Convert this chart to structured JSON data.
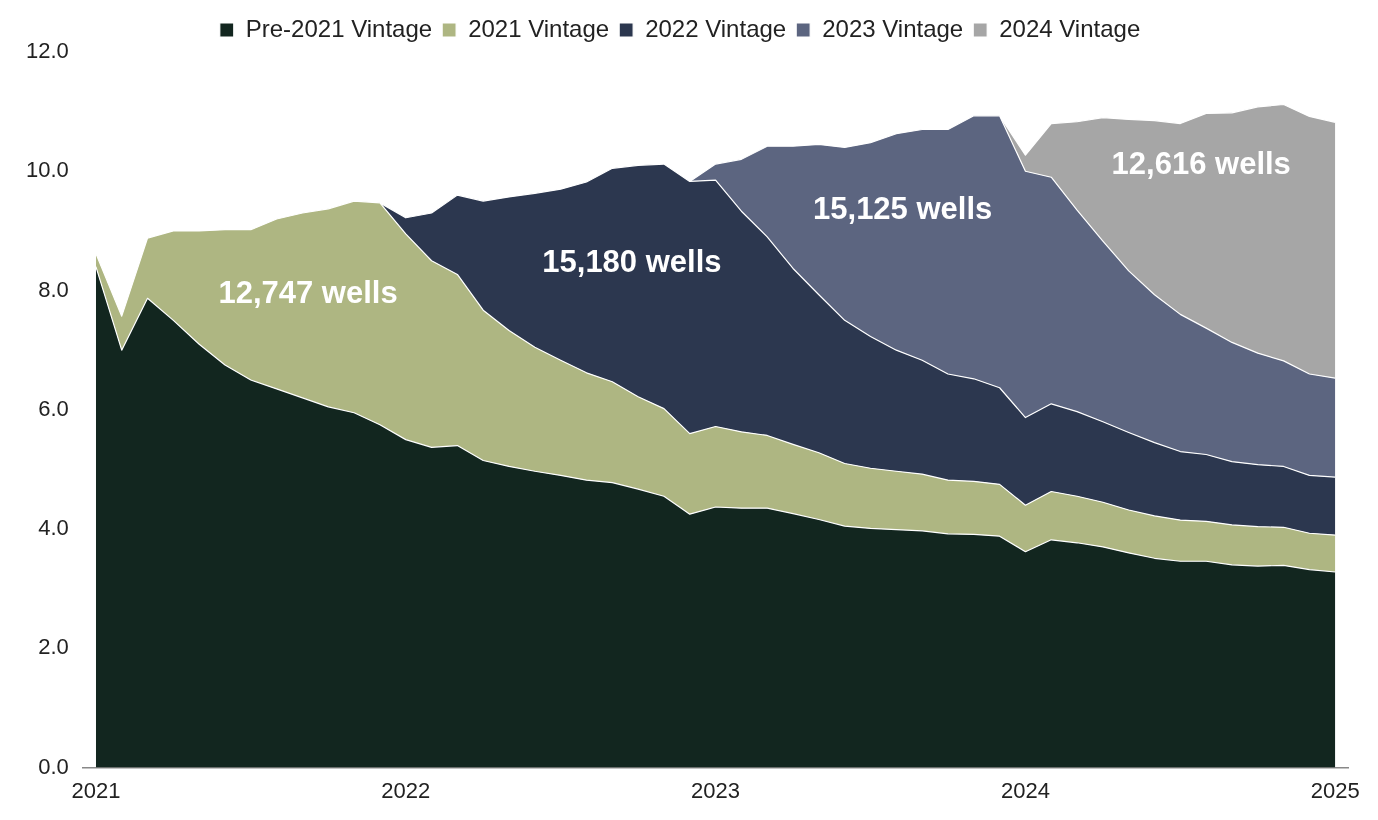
{
  "chart_data": {
    "type": "area",
    "stacked": true,
    "legend": "top",
    "grid": false,
    "x": [
      "2021-01",
      "2021-02",
      "2021-03",
      "2021-04",
      "2021-05",
      "2021-06",
      "2021-07",
      "2021-08",
      "2021-09",
      "2021-10",
      "2021-11",
      "2021-12",
      "2022-01",
      "2022-02",
      "2022-03",
      "2022-04",
      "2022-05",
      "2022-06",
      "2022-07",
      "2022-08",
      "2022-09",
      "2022-10",
      "2022-11",
      "2022-12",
      "2023-01",
      "2023-02",
      "2023-03",
      "2023-04",
      "2023-05",
      "2023-06",
      "2023-07",
      "2023-08",
      "2023-09",
      "2023-10",
      "2023-11",
      "2023-12",
      "2024-01",
      "2024-02",
      "2024-03",
      "2024-04",
      "2024-05",
      "2024-06",
      "2024-07",
      "2024-08",
      "2024-09",
      "2024-10",
      "2024-11",
      "2024-12",
      "2025-01"
    ],
    "xlim": [
      "2020-12-16",
      "2025-01-16"
    ],
    "xticks": [
      "2021",
      "2022",
      "2023",
      "2024",
      "2025"
    ],
    "ylim": [
      0,
      12
    ],
    "yticks": [
      {
        "value": 0,
        "label": "0.0"
      },
      {
        "value": 2,
        "label": "2.0"
      },
      {
        "value": 4,
        "label": "4.0"
      },
      {
        "value": 6,
        "label": "6.0"
      },
      {
        "value": 8,
        "label": "8.0"
      },
      {
        "value": 10,
        "label": "10.0"
      },
      {
        "value": 12,
        "label": "12.0"
      }
    ],
    "series": [
      {
        "name": "Pre-2021 Vintage",
        "color": "#12261f",
        "values": [
          8.4,
          7.0,
          7.87,
          7.5,
          7.1,
          6.75,
          6.5,
          6.35,
          6.2,
          6.05,
          5.95,
          5.75,
          5.5,
          5.37,
          5.4,
          5.15,
          5.05,
          4.97,
          4.9,
          4.82,
          4.78,
          4.67,
          4.55,
          4.25,
          4.37,
          4.35,
          4.35,
          4.26,
          4.16,
          4.05,
          4.01,
          3.99,
          3.97,
          3.92,
          3.91,
          3.88,
          3.62,
          3.82,
          3.77,
          3.7,
          3.6,
          3.51,
          3.46,
          3.46,
          3.4,
          3.38,
          3.39,
          3.32,
          3.28
        ]
      },
      {
        "name": "2021 Vintage",
        "color": "#aeb682",
        "values": [
          0.22,
          0.57,
          1.01,
          1.5,
          1.9,
          2.27,
          2.52,
          2.85,
          3.1,
          3.32,
          3.55,
          3.72,
          3.45,
          3.13,
          2.87,
          2.52,
          2.28,
          2.08,
          1.93,
          1.8,
          1.69,
          1.55,
          1.47,
          1.35,
          1.35,
          1.28,
          1.22,
          1.16,
          1.12,
          1.05,
          1.01,
          0.98,
          0.95,
          0.9,
          0.89,
          0.87,
          0.78,
          0.81,
          0.78,
          0.75,
          0.72,
          0.71,
          0.69,
          0.67,
          0.67,
          0.66,
          0.64,
          0.61,
          0.62
        ]
      },
      {
        "name": "2022 Vintage",
        "color": "#2c374f",
        "values": [
          0,
          0,
          0,
          0,
          0,
          0,
          0,
          0,
          0,
          0,
          0,
          0,
          0.27,
          0.8,
          1.33,
          1.83,
          2.24,
          2.58,
          2.87,
          3.2,
          3.58,
          3.88,
          4.1,
          4.23,
          4.13,
          3.7,
          3.33,
          2.95,
          2.65,
          2.4,
          2.21,
          2.03,
          1.91,
          1.78,
          1.72,
          1.62,
          1.47,
          1.47,
          1.42,
          1.35,
          1.3,
          1.23,
          1.15,
          1.12,
          1.06,
          1.04,
          1.02,
          0.97,
          0.97
        ]
      },
      {
        "name": "2023 Vintage",
        "color": "#5c6580",
        "values": [
          0,
          0,
          0,
          0,
          0,
          0,
          0,
          0,
          0,
          0,
          0,
          0,
          0,
          0,
          0,
          0,
          0,
          0,
          0,
          0,
          0,
          0,
          0,
          0,
          0.27,
          0.87,
          1.52,
          2.05,
          2.52,
          2.9,
          3.25,
          3.63,
          3.87,
          4.1,
          4.41,
          4.56,
          4.13,
          3.8,
          3.38,
          3.03,
          2.71,
          2.48,
          2.3,
          2.12,
          2.0,
          1.87,
          1.77,
          1.7,
          1.66
        ]
      },
      {
        "name": "2024 Vintage",
        "color": "#a6a6a6",
        "values": [
          0,
          0,
          0,
          0,
          0,
          0,
          0,
          0,
          0,
          0,
          0,
          0,
          0,
          0,
          0,
          0,
          0,
          0,
          0,
          0,
          0,
          0,
          0,
          0,
          0,
          0,
          0,
          0,
          0,
          0,
          0,
          0,
          0,
          0,
          0,
          0,
          0.27,
          0.9,
          1.48,
          2.07,
          2.54,
          2.92,
          3.2,
          3.6,
          3.85,
          4.13,
          4.3,
          4.32,
          4.29
        ]
      }
    ],
    "annotations": [
      "12,747 wells",
      "15,180 wells",
      "15,125 wells",
      "12,616 wells"
    ]
  }
}
